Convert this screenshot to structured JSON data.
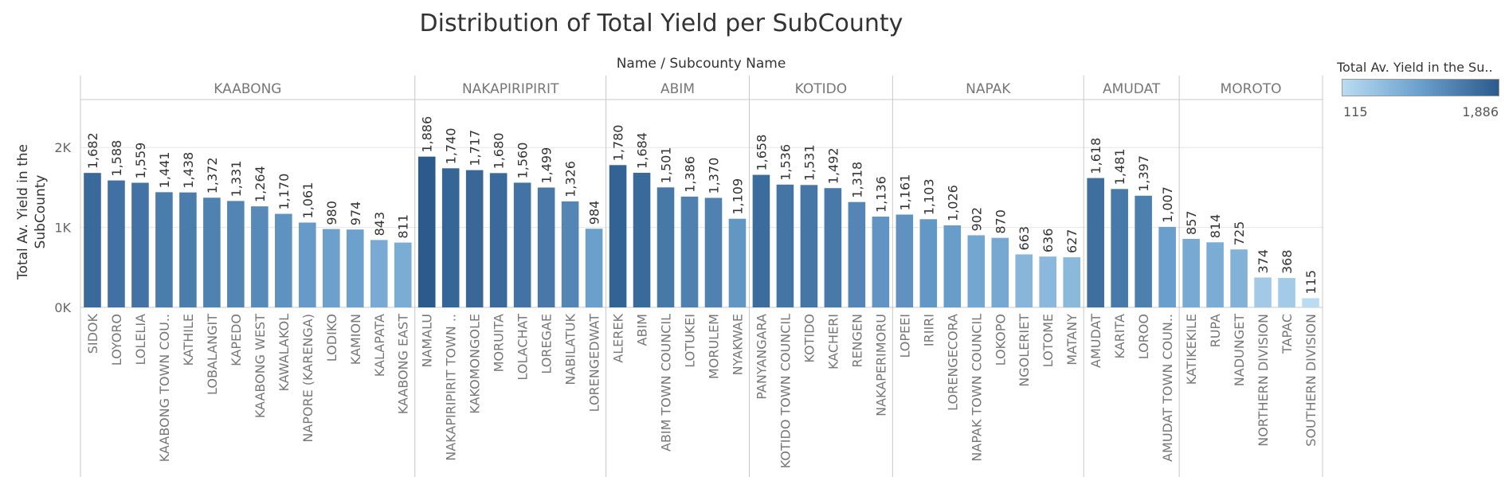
{
  "title": "Distribution of Total Yield per SubCounty",
  "column_header": "Name  /  Subcounty Name",
  "legend": {
    "title": "Total Av. Yield in the Su..",
    "min_label": "115",
    "max_label": "1,886",
    "color_low": "#b9dcf2",
    "color_high": "#2c5a8c"
  },
  "chart_data": {
    "type": "bar",
    "title": "Distribution of Total Yield per SubCounty",
    "xlabel": "Name  /  Subcounty Name",
    "ylabel": "Total Av. Yield in the SubCounty",
    "ylim": [
      0,
      2600
    ],
    "y_ticks": [
      0,
      1000,
      2000
    ],
    "y_tick_labels": [
      "0K",
      "1K",
      "2K"
    ],
    "grid": true,
    "groups": [
      {
        "name": "KAABONG",
        "categories": [
          "SIDOK",
          "LOYORO",
          "LOLELIA",
          "KAABONG TOWN COU..",
          "KATHILE",
          "LOBALANGIT",
          "KAPEDO",
          "KAABONG WEST",
          "KAWALAKOL",
          "NAPORE (KARENGA)",
          "LODIKO",
          "KAMION",
          "KALAPATA",
          "KAABONG EAST"
        ],
        "values": [
          1682,
          1588,
          1559,
          1441,
          1438,
          1372,
          1331,
          1264,
          1170,
          1061,
          980,
          974,
          843,
          811
        ],
        "labels": [
          "1,682",
          "1,588",
          "1,559",
          "1,441",
          "1,438",
          "1,372",
          "1,331",
          "1,264",
          "1,170",
          "1,061",
          "980",
          "974",
          "843",
          "811"
        ]
      },
      {
        "name": "NAKAPIRIPIRIT",
        "categories": [
          "NAMALU",
          "NAKAPIRIPIRIT TOWN ..",
          "KAKOMONGOLE",
          "MORUITA",
          "LOLACHAT",
          "LOREGAE",
          "NABILATUK",
          "LORENGEDWAT"
        ],
        "values": [
          1886,
          1740,
          1717,
          1680,
          1560,
          1499,
          1326,
          984
        ],
        "labels": [
          "1,886",
          "1,740",
          "1,717",
          "1,680",
          "1,560",
          "1,499",
          "1,326",
          "984"
        ]
      },
      {
        "name": "ABIM",
        "categories": [
          "ALEREK",
          "ABIM",
          "ABIM TOWN COUNCIL",
          "LOTUKEI",
          "MORULEM",
          "NYAKWAE"
        ],
        "values": [
          1780,
          1684,
          1501,
          1386,
          1370,
          1109
        ],
        "labels": [
          "1,780",
          "1,684",
          "1,501",
          "1,386",
          "1,370",
          "1,109"
        ]
      },
      {
        "name": "KOTIDO",
        "categories": [
          "PANYANGARA",
          "KOTIDO TOWN COUNCIL",
          "KOTIDO",
          "KACHERI",
          "RENGEN",
          "NAKAPERIMORU"
        ],
        "values": [
          1658,
          1536,
          1531,
          1492,
          1318,
          1136
        ],
        "labels": [
          "1,658",
          "1,536",
          "1,531",
          "1,492",
          "1,318",
          "1,136"
        ]
      },
      {
        "name": "NAPAK",
        "categories": [
          "LOPEEI",
          "IRIIRI",
          "LORENGECORA",
          "NAPAK TOWN COUNCIL",
          "LOKOPO",
          "NGOLERIET",
          "LOTOME",
          "MATANY"
        ],
        "values": [
          1161,
          1103,
          1026,
          902,
          870,
          663,
          636,
          627
        ],
        "labels": [
          "1,161",
          "1,103",
          "1,026",
          "902",
          "870",
          "663",
          "636",
          "627"
        ]
      },
      {
        "name": "AMUDAT",
        "categories": [
          "AMUDAT",
          "KARITA",
          "LOROO",
          "AMUDAT TOWN COUN.."
        ],
        "values": [
          1618,
          1481,
          1397,
          1007
        ],
        "labels": [
          "1,618",
          "1,481",
          "1,397",
          "1,007"
        ]
      },
      {
        "name": "MOROTO",
        "categories": [
          "KATIKEKILE",
          "RUPA",
          "NADUNGET",
          "NORTHERN DIVISION",
          "TAPAC",
          "SOUTHERN DIVISION"
        ],
        "values": [
          857,
          814,
          725,
          374,
          368,
          115
        ],
        "labels": [
          "857",
          "814",
          "725",
          "374",
          "368",
          "115"
        ]
      }
    ],
    "color_min_value": 115,
    "color_max_value": 1886
  }
}
